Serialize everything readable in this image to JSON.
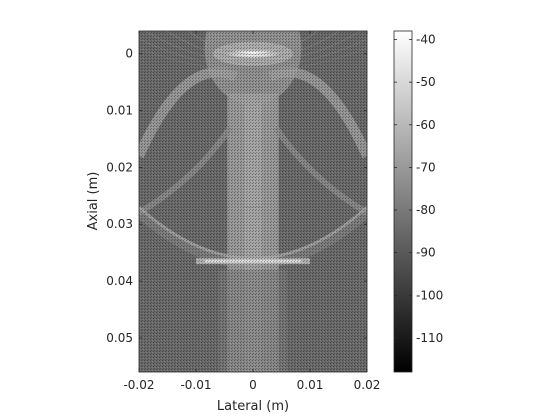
{
  "chart_data": {
    "type": "heatmap",
    "title": "",
    "xlabel": "Lateral (m)",
    "ylabel": "Axial (m)",
    "xlim": [
      -0.02,
      0.02
    ],
    "ylim": [
      0.056,
      -0.004
    ],
    "xticks": [
      -0.02,
      -0.01,
      0,
      0.01,
      0.02
    ],
    "xtick_labels": [
      "-0.02",
      "-0.01",
      "0",
      "0.01",
      "0.02"
    ],
    "yticks": [
      0,
      0.01,
      0.02,
      0.03,
      0.04,
      0.05
    ],
    "ytick_labels": [
      "0",
      "0.01",
      "0.02",
      "0.03",
      "0.04",
      "0.05"
    ],
    "colormap": "gray",
    "colorbar": {
      "clim": [
        -118,
        -38
      ],
      "ticks": [
        -40,
        -50,
        -60,
        -70,
        -80,
        -90,
        -100,
        -110
      ],
      "tick_labels": [
        "-40",
        "-50",
        "-60",
        "-70",
        "-80",
        "-90",
        "-100",
        "-110"
      ]
    },
    "features": {
      "bright_spot": {
        "lateral": 0.0,
        "axial": 0.0,
        "level_db": -40
      },
      "bright_band": {
        "axial": 0.0365,
        "level_db": -48
      },
      "faint_line": {
        "axial": 0.027,
        "level_db": -70
      },
      "center_column_halfwidth": 0.0045,
      "background_db": -85
    }
  }
}
